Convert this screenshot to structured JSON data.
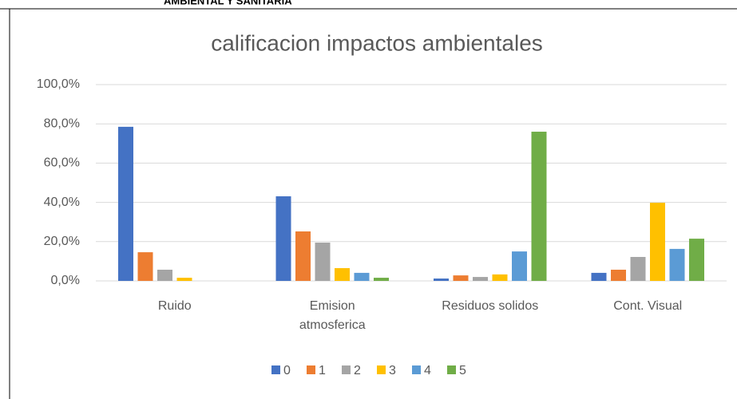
{
  "header_text": "AMBIENTAL Y SANITARIA",
  "chart_data": {
    "type": "bar",
    "title": "calificacion impactos ambientales",
    "categories": [
      "Ruido",
      "Emision atmosferica",
      "Residuos solidos",
      "Cont. Visual"
    ],
    "series": [
      {
        "name": "0",
        "color": "#4472c4",
        "values": [
          78.5,
          43.1,
          1.2,
          4.1
        ]
      },
      {
        "name": "1",
        "color": "#ed7d31",
        "values": [
          14.6,
          25.2,
          2.8,
          5.7
        ]
      },
      {
        "name": "2",
        "color": "#a5a5a5",
        "values": [
          5.7,
          19.5,
          2.0,
          12.2
        ]
      },
      {
        "name": "3",
        "color": "#ffc000",
        "values": [
          1.6,
          6.5,
          3.3,
          39.8
        ]
      },
      {
        "name": "4",
        "color": "#5b9bd5",
        "values": [
          0,
          4.1,
          15.0,
          16.3
        ]
      },
      {
        "name": "5",
        "color": "#70ad47",
        "values": [
          0,
          1.6,
          76.0,
          21.5
        ]
      }
    ],
    "ylim": [
      0,
      100
    ],
    "yticks": [
      {
        "value": 0,
        "label": "0,0%"
      },
      {
        "value": 20,
        "label": "20,0%"
      },
      {
        "value": 40,
        "label": "40,0%"
      },
      {
        "value": 60,
        "label": "60,0%"
      },
      {
        "value": 80,
        "label": "80,0%"
      },
      {
        "value": 100,
        "label": "100,0%"
      }
    ],
    "grid": true,
    "legend": "bottom"
  }
}
